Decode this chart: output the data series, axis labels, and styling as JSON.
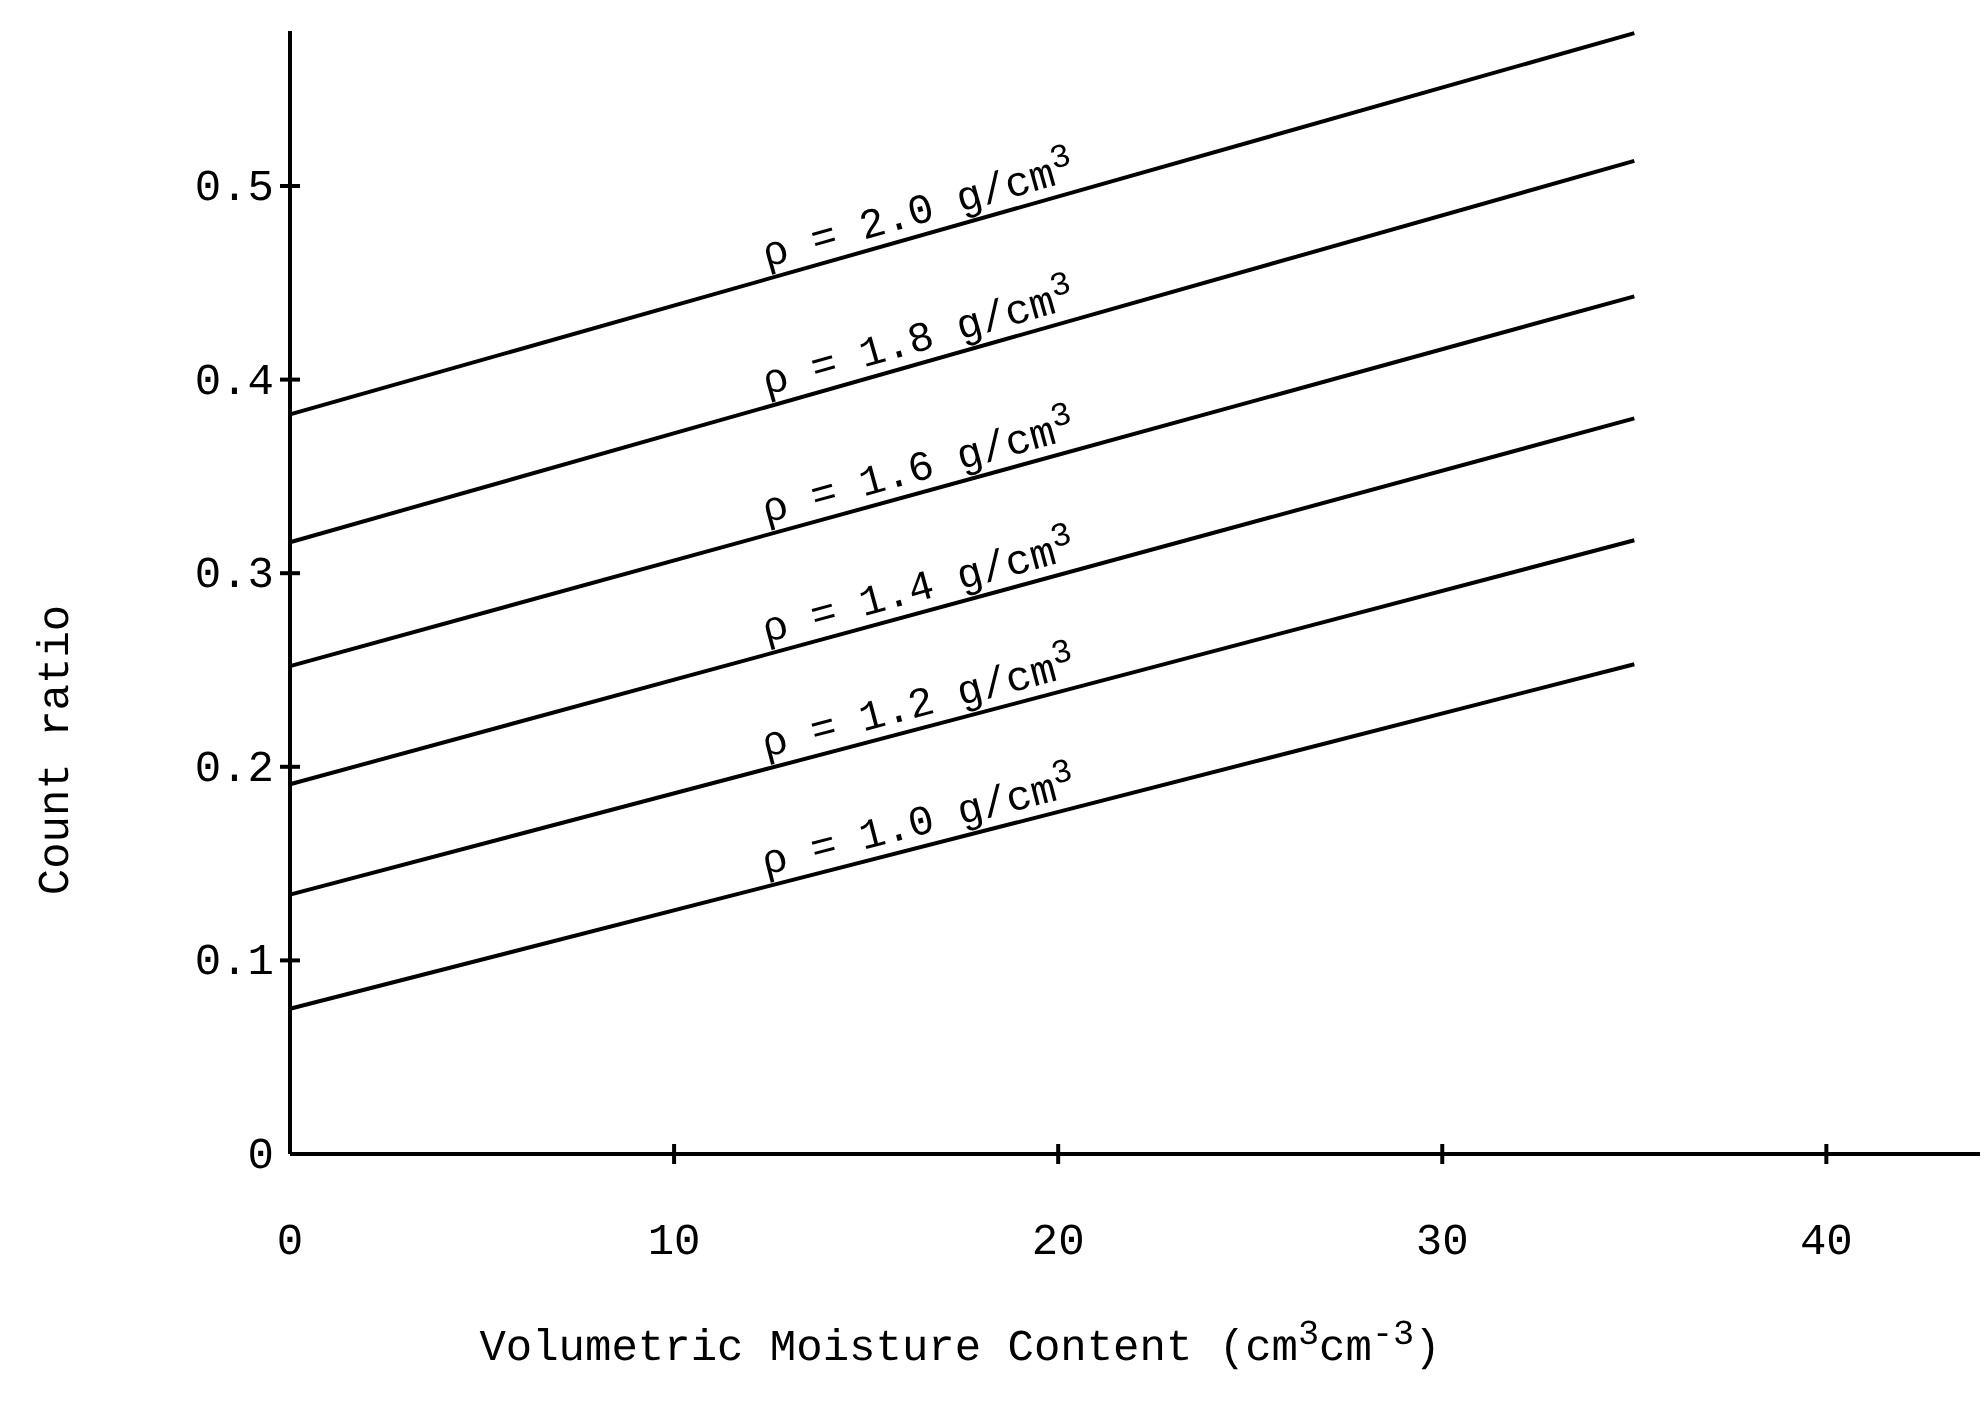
{
  "chart_data": {
    "type": "line",
    "xlabel": "Volumetric Moisture Content (cm$^{3}$cm$^{-3}$)",
    "ylabel": "Count ratio",
    "x": [
      0,
      35
    ],
    "xlim": [
      0,
      44
    ],
    "xticks": [
      0,
      10,
      20,
      30,
      40
    ],
    "ylim": [
      0,
      0.58
    ],
    "yticks": [
      0,
      0.1,
      0.2,
      0.3,
      0.4,
      0.5
    ],
    "grid": false,
    "marker": "none",
    "line_style": "solid",
    "series": [
      {
        "name": "ρ = 2.0 g/cm$^{3}$",
        "color": "#000000",
        "values": [
          0.382,
          0.579
        ]
      },
      {
        "name": "ρ = 1.8 g/cm$^{3}$",
        "color": "#000000",
        "values": [
          0.316,
          0.513
        ]
      },
      {
        "name": "ρ = 1.6 g/cm$^{3}$",
        "color": "#000000",
        "values": [
          0.252,
          0.443
        ]
      },
      {
        "name": "ρ = 1.4 g/cm$^{3}$",
        "color": "#000000",
        "values": [
          0.191,
          0.38
        ]
      },
      {
        "name": "ρ = 1.2 g/cm$^{3}$",
        "color": "#000000",
        "values": [
          0.134,
          0.317
        ]
      },
      {
        "name": "ρ = 1.0 g/cm$^{3}$",
        "color": "#000000",
        "values": [
          0.075,
          0.253
        ]
      }
    ]
  }
}
